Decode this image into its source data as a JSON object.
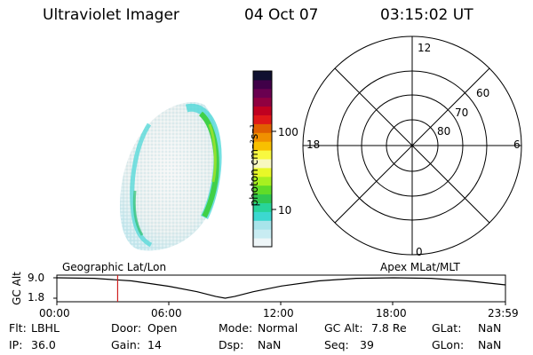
{
  "header": {
    "instrument": "Ultraviolet Imager",
    "date": "04 Oct 07",
    "time": "03:15:02 UT"
  },
  "colors": {
    "colorbar_stops": [
      "#eef6f8",
      "#c8ecf2",
      "#a8e4ea",
      "#3cd8d0",
      "#28d49a",
      "#30c850",
      "#60dc28",
      "#a8f020",
      "#e8f828",
      "#f8f8c0",
      "#f8f840",
      "#f8c000",
      "#f09000",
      "#e06000",
      "#e01818",
      "#c00020",
      "#900040",
      "#6a0050",
      "#400048",
      "#101030"
    ],
    "aurora_edge": "#40d048",
    "aurora_band": "#50d8d8",
    "aurora_fill": "#e8f2f2",
    "marker": "#d02020"
  },
  "colorbar": {
    "unit_label": "photon cm⁻²s⁻¹",
    "tick_labels": [
      "100",
      "10"
    ]
  },
  "polar_plot": {
    "mlt_labels": [
      "12",
      "18",
      "6",
      "0"
    ],
    "lat_labels": [
      "60",
      "70",
      "80"
    ]
  },
  "timeline": {
    "ylabel": "GC Alt",
    "ytick_labels": [
      "9.0",
      "1.8"
    ],
    "left_caption": "Geographic Lat/Lon",
    "right_caption": "Apex MLat/MLT",
    "xtick_labels": [
      "00:00",
      "06:00",
      "12:00",
      "18:00",
      "23:59"
    ]
  },
  "chart_data": {
    "type": "line",
    "title": "",
    "ylabel": "GC Alt",
    "ylim": [
      1.8,
      9.0
    ],
    "xlim": [
      "00:00",
      "23:59"
    ],
    "x": [
      "00:00",
      "02:00",
      "04:00",
      "06:00",
      "07:30",
      "08:30",
      "09:00",
      "09:30",
      "10:30",
      "12:00",
      "14:00",
      "16:00",
      "18:00",
      "20:00",
      "22:00",
      "23:59"
    ],
    "series": [
      {
        "values": [
          9.0,
          8.8,
          7.9,
          6.0,
          4.1,
          2.4,
          1.8,
          2.4,
          4.1,
          6.1,
          7.9,
          8.8,
          9.0,
          8.8,
          7.9,
          6.5
        ]
      }
    ],
    "current_time_marker": "03:15"
  },
  "status": [
    {
      "label": "Flt:",
      "value": "LBHL"
    },
    {
      "label": "Door:",
      "value": "Open"
    },
    {
      "label": "Mode:",
      "value": "Normal"
    },
    {
      "label": "GC Alt:",
      "value": "7.8 Re"
    },
    {
      "label": "GLat:",
      "value": "NaN"
    },
    {
      "label": "IP:",
      "value": "36.0"
    },
    {
      "label": "Gain:",
      "value": "14"
    },
    {
      "label": "Dsp:",
      "value": "NaN"
    },
    {
      "label": "Seq:",
      "value": "39"
    },
    {
      "label": "GLon:",
      "value": "NaN"
    }
  ]
}
